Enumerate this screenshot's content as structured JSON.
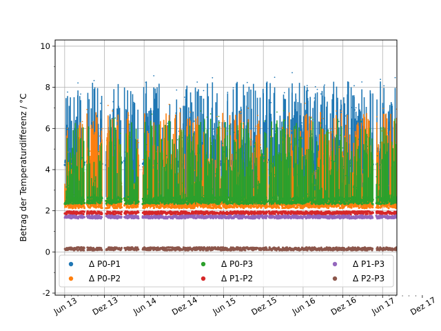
{
  "chart_data": {
    "type": "scatter",
    "title": "",
    "xlabel": "",
    "ylabel": "Betrag der Temperaturdifferenz / °C",
    "ylim": [
      -2.1,
      10.3
    ],
    "xlim": [
      -0.12,
      4.18
    ],
    "grid": true,
    "legend_position": "lower-center",
    "x_ticks": [
      {
        "label": "Jun 13",
        "value": 0.0
      },
      {
        "label": "Dez 13",
        "value": 0.5
      },
      {
        "label": "Jun 14",
        "value": 1.0
      },
      {
        "label": "Dez 14",
        "value": 1.5
      },
      {
        "label": "Jun 15",
        "value": 2.0
      },
      {
        "label": "Dez 15",
        "value": 2.5
      },
      {
        "label": "Jun 16",
        "value": 3.0
      },
      {
        "label": "Dez 16",
        "value": 3.5
      },
      {
        "label": "Jun 17",
        "value": 4.0
      },
      {
        "label": "Dez 17",
        "value": 4.5
      }
    ],
    "y_ticks": [
      -2,
      0,
      2,
      4,
      6,
      8,
      10
    ],
    "data_span": [
      0.0,
      4.25
    ],
    "gaps": [
      [
        0.25,
        0.28
      ],
      [
        0.47,
        0.52
      ],
      [
        0.72,
        0.75
      ],
      [
        0.93,
        0.98
      ],
      [
        2.55,
        2.57
      ],
      [
        3.88,
        3.92
      ]
    ],
    "series": [
      {
        "name": "Δ P0-P1",
        "color": "#1f77b4",
        "baseline": 4.3,
        "peak": 8.3,
        "low": 2.5
      },
      {
        "name": "Δ P0-P2",
        "color": "#ff7f0e",
        "baseline": 2.3,
        "peak": 6.8,
        "low": 2.1
      },
      {
        "name": "Δ P0-P3",
        "color": "#2ca02c",
        "baseline": 2.5,
        "peak": 6.5,
        "low": 2.3
      },
      {
        "name": "Δ P1-P2",
        "color": "#d62728",
        "baseline": 1.9,
        "peak": 2.1,
        "low": 1.7
      },
      {
        "name": "Δ P1-P3",
        "color": "#9467bd",
        "baseline": 1.7,
        "peak": 1.95,
        "low": 1.45
      },
      {
        "name": "Δ P2-P3",
        "color": "#8c564b",
        "baseline": 0.15,
        "peak": 0.35,
        "low": 0.0
      }
    ]
  }
}
